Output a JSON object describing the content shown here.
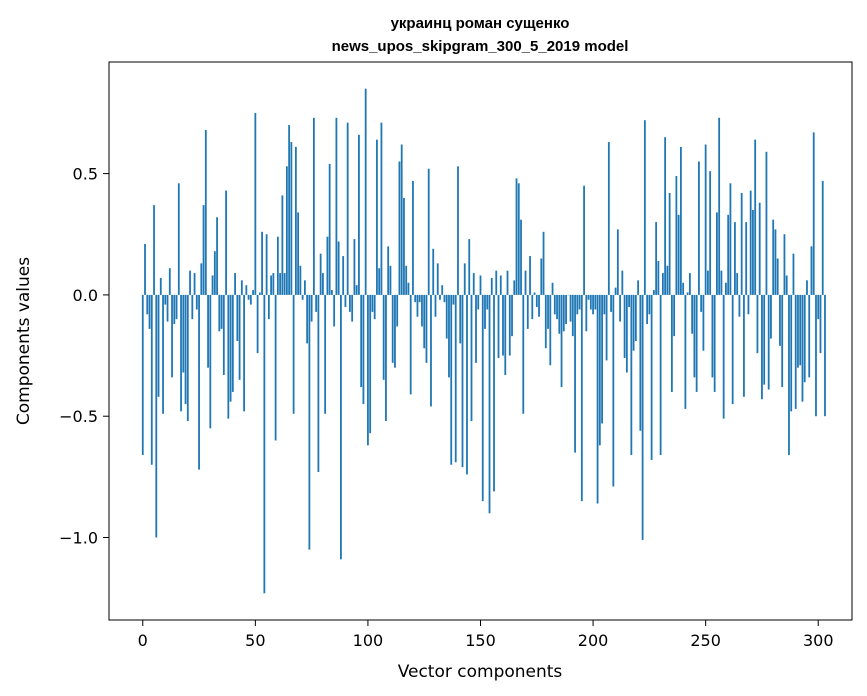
{
  "chart_data": {
    "type": "bar",
    "title_line1": "украинц роман сущенко",
    "title_line2": "news_upos_skipgram_300_5_2019 model",
    "xlabel": "Vector components",
    "ylabel": "Components values",
    "xlim": [
      -15,
      315
    ],
    "ylim": [
      -1.34,
      0.96
    ],
    "xticks": [
      0,
      50,
      100,
      150,
      200,
      250,
      300
    ],
    "xtick_labels": [
      "0",
      "50",
      "100",
      "150",
      "200",
      "250",
      "300"
    ],
    "yticks": [
      -1.0,
      -0.5,
      0.0,
      0.5
    ],
    "ytick_labels": [
      "−1.0",
      "−0.5",
      "0.0",
      "0.5"
    ],
    "bar_color": "#1f77b4",
    "grid": false,
    "values": [
      -0.66,
      0.21,
      -0.08,
      -0.14,
      -0.7,
      0.37,
      -1.0,
      -0.42,
      0.07,
      -0.49,
      -0.04,
      -0.11,
      0.11,
      -0.34,
      -0.12,
      -0.1,
      0.46,
      -0.48,
      -0.32,
      -0.45,
      -0.52,
      0.1,
      -0.1,
      0.09,
      -0.06,
      -0.72,
      0.13,
      0.37,
      0.68,
      -0.3,
      -0.55,
      0.08,
      0.18,
      0.32,
      -0.15,
      -0.14,
      -0.33,
      0.43,
      -0.51,
      -0.44,
      -0.4,
      0.09,
      -0.19,
      -0.35,
      0.06,
      -0.48,
      0.04,
      -0.02,
      -0.04,
      0.02,
      0.75,
      -0.24,
      0.01,
      0.26,
      -1.23,
      0.25,
      -0.1,
      0.08,
      0.09,
      -0.6,
      0.24,
      0.09,
      0.41,
      0.09,
      0.53,
      0.7,
      0.63,
      -0.49,
      0.61,
      0.34,
      0.12,
      -0.02,
      0.06,
      -0.2,
      -1.05,
      -0.11,
      0.73,
      -0.07,
      -0.73,
      0.17,
      0.09,
      -0.49,
      0.24,
      0.54,
      0.02,
      -0.13,
      0.73,
      0.22,
      -1.09,
      0.16,
      -0.05,
      0.71,
      -0.07,
      -0.11,
      0.23,
      0.04,
      0.66,
      -0.38,
      -0.45,
      0.85,
      -0.62,
      -0.57,
      -0.07,
      -0.1,
      0.64,
      0.11,
      0.71,
      -0.35,
      -0.52,
      0.2,
      0.12,
      -0.28,
      -0.3,
      -0.13,
      0.55,
      0.62,
      0.4,
      0.12,
      0.05,
      -0.41,
      0.47,
      -0.03,
      -0.09,
      -0.03,
      -0.13,
      -0.22,
      -0.28,
      0.52,
      -0.46,
      0.19,
      -0.09,
      0.13,
      -0.02,
      0.04,
      -0.03,
      -0.18,
      -0.34,
      -0.7,
      -0.04,
      -0.69,
      0.53,
      -0.2,
      -0.71,
      0.13,
      -0.74,
      0.23,
      -0.52,
      0.09,
      -0.28,
      -0.06,
      0.08,
      -0.85,
      -0.14,
      -0.06,
      -0.9,
      0.07,
      -0.81,
      0.1,
      -0.26,
      0.08,
      -0.25,
      -0.33,
      0.1,
      -0.25,
      -0.17,
      0.06,
      0.48,
      0.46,
      0.31,
      -0.49,
      0.1,
      -0.14,
      0.16,
      -0.1,
      0.01,
      -0.05,
      -0.09,
      0.15,
      0.26,
      -0.22,
      -0.14,
      -0.29,
      0.05,
      -0.08,
      -0.1,
      -0.16,
      -0.38,
      -0.15,
      -0.12,
      0.0,
      -0.11,
      -0.17,
      -0.65,
      -0.08,
      -0.06,
      -0.85,
      0.45,
      -0.15,
      -0.02,
      -0.06,
      -0.08,
      -0.06,
      -0.86,
      -0.62,
      -0.53,
      -0.08,
      -0.27,
      0.63,
      -0.07,
      -0.79,
      0.03,
      0.27,
      -0.11,
      0.1,
      -0.26,
      -0.32,
      -0.05,
      -0.66,
      -0.23,
      -0.19,
      0.06,
      -0.56,
      -1.01,
      0.72,
      -0.12,
      -0.08,
      -0.68,
      0.02,
      0.3,
      0.14,
      -0.66,
      0.09,
      0.65,
      0.12,
      0.42,
      -0.4,
      -0.17,
      0.49,
      0.33,
      0.61,
      0.05,
      -0.47,
      0.01,
      0.09,
      -0.16,
      -0.34,
      -0.4,
      0.55,
      -0.07,
      -0.23,
      0.62,
      0.1,
      0.51,
      -0.34,
      -0.4,
      0.34,
      0.73,
      0.1,
      -0.51,
      0.05,
      0.33,
      0.46,
      -0.45,
      0.3,
      0.09,
      -0.09,
      0.42,
      -0.42,
      0.3,
      -0.08,
      0.43,
      0.35,
      0.64,
      -0.24,
      0.38,
      -0.43,
      -0.37,
      0.59,
      -0.39,
      -0.18,
      0.31,
      0.27,
      0.15,
      -0.21,
      -0.38,
      0.25,
      0.08,
      -0.66,
      -0.48,
      0.17,
      -0.47,
      -0.3,
      -0.29,
      -0.44,
      -0.36,
      0.06,
      -0.34,
      0.2,
      0.67,
      -0.5,
      -0.1,
      -0.24,
      0.47,
      -0.5
    ]
  }
}
